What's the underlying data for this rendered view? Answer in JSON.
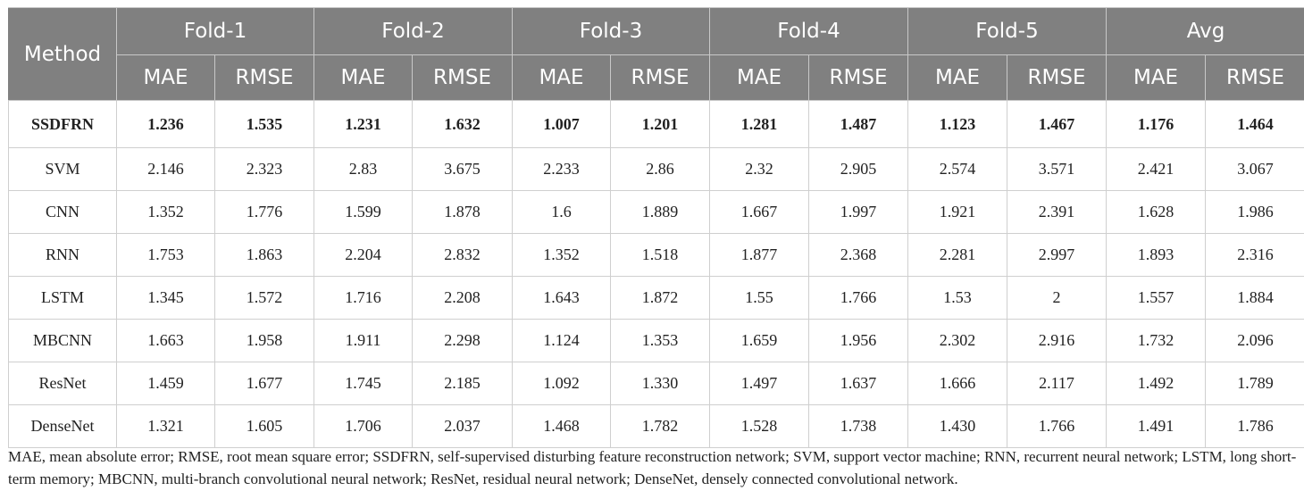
{
  "table": {
    "method_header": "Method",
    "groups": [
      "Fold-1",
      "Fold-2",
      "Fold-3",
      "Fold-4",
      "Fold-5",
      "Avg"
    ],
    "subheaders": [
      "MAE",
      "RMSE"
    ],
    "rows": [
      {
        "method": "SSDFRN",
        "values": [
          "1.236",
          "1.535",
          "1.231",
          "1.632",
          "1.007",
          "1.201",
          "1.281",
          "1.487",
          "1.123",
          "1.467",
          "1.176",
          "1.464"
        ]
      },
      {
        "method": "SVM",
        "values": [
          "2.146",
          "2.323",
          "2.83",
          "3.675",
          "2.233",
          "2.86",
          "2.32",
          "2.905",
          "2.574",
          "3.571",
          "2.421",
          "3.067"
        ]
      },
      {
        "method": "CNN",
        "values": [
          "1.352",
          "1.776",
          "1.599",
          "1.878",
          "1.6",
          "1.889",
          "1.667",
          "1.997",
          "1.921",
          "2.391",
          "1.628",
          "1.986"
        ]
      },
      {
        "method": "RNN",
        "values": [
          "1.753",
          "1.863",
          "2.204",
          "2.832",
          "1.352",
          "1.518",
          "1.877",
          "2.368",
          "2.281",
          "2.997",
          "1.893",
          "2.316"
        ]
      },
      {
        "method": "LSTM",
        "values": [
          "1.345",
          "1.572",
          "1.716",
          "2.208",
          "1.643",
          "1.872",
          "1.55",
          "1.766",
          "1.53",
          "2",
          "1.557",
          "1.884"
        ]
      },
      {
        "method": "MBCNN",
        "values": [
          "1.663",
          "1.958",
          "1.911",
          "2.298",
          "1.124",
          "1.353",
          "1.659",
          "1.956",
          "2.302",
          "2.916",
          "1.732",
          "2.096"
        ]
      },
      {
        "method": "ResNet",
        "values": [
          "1.459",
          "1.677",
          "1.745",
          "2.185",
          "1.092",
          "1.330",
          "1.497",
          "1.637",
          "1.666",
          "2.117",
          "1.492",
          "1.789"
        ]
      },
      {
        "method": "DenseNet",
        "values": [
          "1.321",
          "1.605",
          "1.706",
          "2.037",
          "1.468",
          "1.782",
          "1.528",
          "1.738",
          "1.430",
          "1.766",
          "1.491",
          "1.786"
        ]
      }
    ]
  },
  "footnote": "MAE, mean absolute error; RMSE, root mean square error; SSDFRN, self-supervised disturbing feature reconstruction network; SVM, support vector machine; RNN, recurrent neural network; LSTM, long short-term memory; MBCNN, multi-branch convolutional neural network; ResNet, residual neural network; DenseNet, densely connected convolutional network.",
  "colors": {
    "header_bg": "#808080",
    "header_text": "#ffffff",
    "grid": "#cfcfcf"
  }
}
